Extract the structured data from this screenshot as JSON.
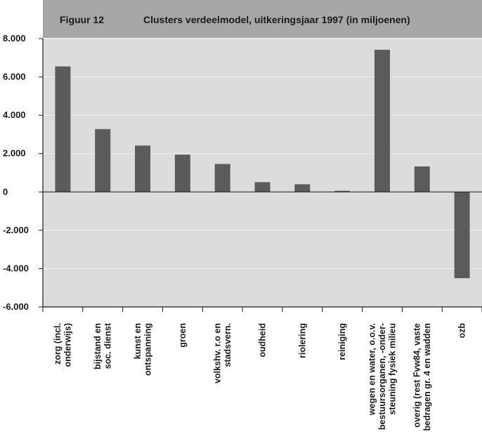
{
  "figure": {
    "label": "Figuur 12",
    "title": "Clusters verdeelmodel, uitkeringsjaar 1997 (in miljoenen)"
  },
  "colors": {
    "header": "#a7a7a7",
    "plot_bg": "#dcdcdc",
    "bar": "#5b5b5b",
    "grid": "#f2f2f2",
    "axis": "#1a1a1a"
  },
  "chart_data": {
    "type": "bar",
    "title": "Clusters verdeelmodel, uitkeringsjaar 1997 (in miljoenen)",
    "xlabel": "",
    "ylabel": "",
    "ylim": [
      -6000,
      8000
    ],
    "yticks": [
      8000,
      6000,
      4000,
      2000,
      0,
      -2000,
      -4000,
      -6000
    ],
    "ytick_labels": [
      "8.000",
      "6.000",
      "4.000",
      "2.000",
      "0",
      "-2.000",
      "-4.000",
      "-6.000"
    ],
    "grid": true,
    "categories": [
      [
        "zorg (incl.",
        "onderwijs)"
      ],
      [
        "bijstand en",
        "soc. dienst"
      ],
      [
        "kunst en",
        "ontspanning"
      ],
      [
        "groen"
      ],
      [
        "volkshv. r.o en",
        "stadsvern."
      ],
      [
        "oudheid"
      ],
      [
        "riolering"
      ],
      [
        "reiniging"
      ],
      [
        "wegen en water, o.o.v.",
        "bestuursorganen, -onder-",
        "steuning fysiek milieu"
      ],
      [
        "overig (rest Fvw84, vaste",
        "bedragen gr. 4 en wadden"
      ],
      [
        "ozb"
      ]
    ],
    "values": [
      6550,
      3280,
      2420,
      1950,
      1460,
      510,
      400,
      60,
      7420,
      1330,
      -4500
    ]
  }
}
